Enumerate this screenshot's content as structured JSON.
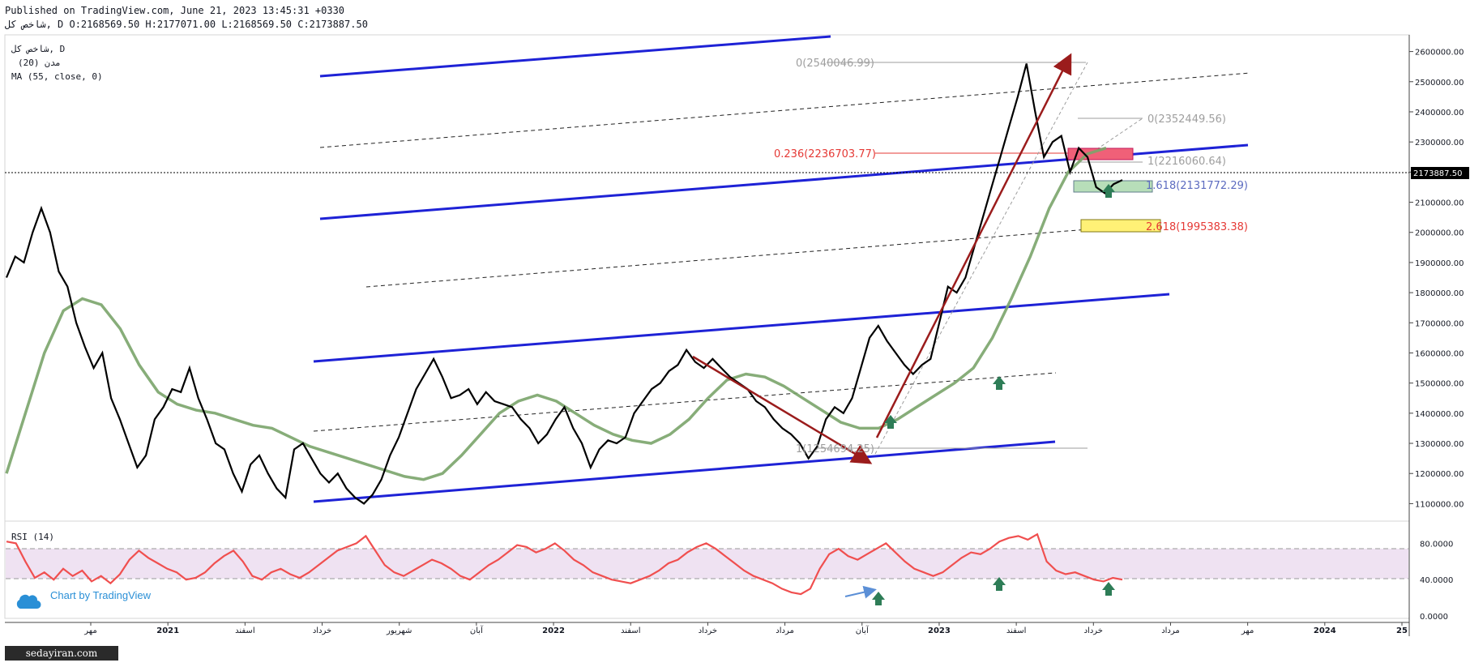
{
  "header": {
    "line1": "Published on TradingView.com, June 21, 2023 13:45:31 +0330",
    "line2": "شاخص کل, D O:2168569.50 H:2177071.00 L:2168569.50 C:2173887.50"
  },
  "legend": {
    "symbol": "شاخص کل, D",
    "indicator1": "(20) مدن",
    "indicator2": "MA (55, close, 0)"
  },
  "price_axis": {
    "ticks": [
      "2600000.00",
      "2500000.00",
      "2400000.00",
      "2300000.00",
      "2200000.00",
      "2100000.00",
      "2000000.00",
      "1900000.00",
      "1800000.00",
      "1700000.00",
      "1600000.00",
      "1500000.00",
      "1400000.00",
      "1300000.00",
      "1200000.00",
      "1100000.00"
    ],
    "last_price": "2173887.50"
  },
  "rsi_axis": {
    "ticks": [
      "80.0000",
      "40.0000",
      "0.0000"
    ]
  },
  "time_axis": {
    "labels": [
      "مهر",
      "2021",
      "اسفند",
      "خرداد",
      "شهریور",
      "آبان",
      "2022",
      "اسفند",
      "خرداد",
      "مرداد",
      "آبان",
      "2023",
      "اسفند",
      "خرداد",
      "مرداد",
      "مهر",
      "2024",
      "25"
    ]
  },
  "fib_labels": {
    "f0_top": "0(2540046.99)",
    "f0_mid": "0(2352449.56)",
    "f236": "0.236(2236703.77)",
    "f1_mid": "1(2216060.64)",
    "f1618": "1.618(2131772.29)",
    "f2618": "2.618(1995383.38)",
    "f1_low": "1(1254694.25)"
  },
  "rsi_label": "RSI (14)",
  "branding": {
    "chart_by": "Chart by TradingView",
    "watermark": "sedayiran.com"
  },
  "colors": {
    "price": "#000000",
    "ma": "#7aa46a",
    "channel": "#1e22d6",
    "arrow": "#9b1c1c",
    "rsi": "#f04f4f",
    "rsi_band": "#efe2f2",
    "fib_red": "#e53935",
    "fib_blue": "#5c6bc0",
    "rect_red": "#f06078",
    "rect_green": "#a5d6a7",
    "rect_yellow": "#fff176",
    "up_arrow": "#2e7d57"
  },
  "chart_data": [
    {
      "type": "line",
      "title": "شاخص کل, D",
      "ylim": [
        1050000,
        2650000
      ],
      "series": [
        {
          "name": "شاخص کل",
          "values": [
            1850000,
            1920000,
            1900000,
            2000000,
            2080000,
            2000000,
            1870000,
            1820000,
            1700000,
            1620000,
            1550000,
            1600000,
            1450000,
            1380000,
            1300000,
            1220000,
            1260000,
            1380000,
            1420000,
            1480000,
            1470000,
            1550000,
            1450000,
            1380000,
            1300000,
            1280000,
            1200000,
            1140000,
            1230000,
            1260000,
            1200000,
            1150000,
            1120000,
            1280000,
            1300000,
            1250000,
            1200000,
            1170000,
            1200000,
            1150000,
            1120000,
            1100000,
            1130000,
            1180000,
            1260000,
            1320000,
            1400000,
            1480000,
            1530000,
            1580000,
            1520000,
            1450000,
            1460000,
            1480000,
            1430000,
            1470000,
            1440000,
            1430000,
            1420000,
            1380000,
            1350000,
            1300000,
            1330000,
            1380000,
            1420000,
            1350000,
            1300000,
            1220000,
            1280000,
            1310000,
            1300000,
            1320000,
            1400000,
            1440000,
            1480000,
            1500000,
            1540000,
            1560000,
            1610000,
            1570000,
            1550000,
            1580000,
            1550000,
            1520000,
            1500000,
            1480000,
            1440000,
            1420000,
            1380000,
            1350000,
            1330000,
            1300000,
            1250000,
            1290000,
            1380000,
            1420000,
            1400000,
            1450000,
            1550000,
            1650000,
            1690000,
            1640000,
            1600000,
            1560000,
            1530000,
            1560000,
            1580000,
            1700000,
            1820000,
            1800000,
            1850000,
            1950000,
            2050000,
            2150000,
            2250000,
            2350000,
            2450000,
            2560000,
            2400000,
            2250000,
            2300000,
            2320000,
            2200000,
            2280000,
            2250000,
            2150000,
            2130000,
            2160000,
            2173887.5
          ]
        },
        {
          "name": "MA (55, close, 0)",
          "values": [
            1200000,
            1400000,
            1600000,
            1740000,
            1780000,
            1760000,
            1680000,
            1560000,
            1470000,
            1430000,
            1410000,
            1400000,
            1380000,
            1360000,
            1350000,
            1320000,
            1290000,
            1270000,
            1250000,
            1230000,
            1210000,
            1190000,
            1180000,
            1200000,
            1260000,
            1330000,
            1400000,
            1440000,
            1460000,
            1440000,
            1400000,
            1360000,
            1330000,
            1310000,
            1300000,
            1330000,
            1380000,
            1450000,
            1510000,
            1530000,
            1520000,
            1490000,
            1450000,
            1410000,
            1370000,
            1350000,
            1350000,
            1380000,
            1420000,
            1460000,
            1500000,
            1550000,
            1650000,
            1780000,
            1920000,
            2080000,
            2200000,
            2260000,
            2280000
          ]
        }
      ],
      "annotations": [
        "0(2540046.99)",
        "0(2352449.56)",
        "0.236(2236703.77)",
        "1(2216060.64)",
        "1.618(2131772.29)",
        "2.618(1995383.38)",
        "1(1254694.25)"
      ]
    },
    {
      "type": "line",
      "title": "RSI (14)",
      "ylim": [
        0,
        100
      ],
      "series": [
        {
          "name": "RSI (14)",
          "values": [
            82,
            80,
            60,
            42,
            48,
            40,
            52,
            44,
            50,
            38,
            44,
            36,
            46,
            62,
            72,
            64,
            58,
            52,
            48,
            40,
            42,
            48,
            58,
            66,
            72,
            60,
            44,
            40,
            48,
            52,
            46,
            42,
            48,
            56,
            64,
            72,
            76,
            80,
            88,
            72,
            56,
            48,
            44,
            50,
            56,
            62,
            58,
            52,
            44,
            40,
            48,
            56,
            62,
            70,
            78,
            76,
            70,
            74,
            80,
            72,
            62,
            56,
            48,
            44,
            40,
            38,
            36,
            40,
            44,
            50,
            58,
            62,
            70,
            76,
            80,
            74,
            66,
            58,
            50,
            44,
            40,
            36,
            30,
            26,
            24,
            30,
            52,
            68,
            74,
            66,
            62,
            68,
            74,
            80,
            70,
            60,
            52,
            48,
            44,
            48,
            56,
            64,
            70,
            68,
            74,
            82,
            86,
            88,
            84,
            90,
            60,
            50,
            46,
            48,
            44,
            40,
            38,
            42,
            40
          ]
        }
      ]
    }
  ]
}
